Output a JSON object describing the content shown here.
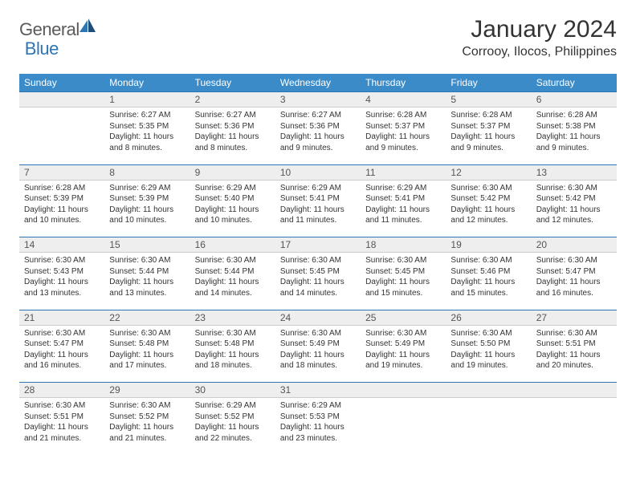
{
  "logo": {
    "general": "General",
    "blue": "Blue"
  },
  "title": "January 2024",
  "location": "Corrooy, Ilocos, Philippines",
  "colors": {
    "header_bg": "#3b8bc9",
    "header_text": "#ffffff",
    "daynum_bg": "#eeeeee",
    "border": "#2e75b6",
    "logo_gray": "#5a5a5a",
    "logo_blue": "#2e75b6"
  },
  "weekdays": [
    "Sunday",
    "Monday",
    "Tuesday",
    "Wednesday",
    "Thursday",
    "Friday",
    "Saturday"
  ],
  "weeks": [
    {
      "days": [
        {
          "num": "",
          "sunrise": "",
          "sunset": "",
          "daylight": ""
        },
        {
          "num": "1",
          "sunrise": "Sunrise: 6:27 AM",
          "sunset": "Sunset: 5:35 PM",
          "daylight": "Daylight: 11 hours and 8 minutes."
        },
        {
          "num": "2",
          "sunrise": "Sunrise: 6:27 AM",
          "sunset": "Sunset: 5:36 PM",
          "daylight": "Daylight: 11 hours and 8 minutes."
        },
        {
          "num": "3",
          "sunrise": "Sunrise: 6:27 AM",
          "sunset": "Sunset: 5:36 PM",
          "daylight": "Daylight: 11 hours and 9 minutes."
        },
        {
          "num": "4",
          "sunrise": "Sunrise: 6:28 AM",
          "sunset": "Sunset: 5:37 PM",
          "daylight": "Daylight: 11 hours and 9 minutes."
        },
        {
          "num": "5",
          "sunrise": "Sunrise: 6:28 AM",
          "sunset": "Sunset: 5:37 PM",
          "daylight": "Daylight: 11 hours and 9 minutes."
        },
        {
          "num": "6",
          "sunrise": "Sunrise: 6:28 AM",
          "sunset": "Sunset: 5:38 PM",
          "daylight": "Daylight: 11 hours and 9 minutes."
        }
      ]
    },
    {
      "days": [
        {
          "num": "7",
          "sunrise": "Sunrise: 6:28 AM",
          "sunset": "Sunset: 5:39 PM",
          "daylight": "Daylight: 11 hours and 10 minutes."
        },
        {
          "num": "8",
          "sunrise": "Sunrise: 6:29 AM",
          "sunset": "Sunset: 5:39 PM",
          "daylight": "Daylight: 11 hours and 10 minutes."
        },
        {
          "num": "9",
          "sunrise": "Sunrise: 6:29 AM",
          "sunset": "Sunset: 5:40 PM",
          "daylight": "Daylight: 11 hours and 10 minutes."
        },
        {
          "num": "10",
          "sunrise": "Sunrise: 6:29 AM",
          "sunset": "Sunset: 5:41 PM",
          "daylight": "Daylight: 11 hours and 11 minutes."
        },
        {
          "num": "11",
          "sunrise": "Sunrise: 6:29 AM",
          "sunset": "Sunset: 5:41 PM",
          "daylight": "Daylight: 11 hours and 11 minutes."
        },
        {
          "num": "12",
          "sunrise": "Sunrise: 6:30 AM",
          "sunset": "Sunset: 5:42 PM",
          "daylight": "Daylight: 11 hours and 12 minutes."
        },
        {
          "num": "13",
          "sunrise": "Sunrise: 6:30 AM",
          "sunset": "Sunset: 5:42 PM",
          "daylight": "Daylight: 11 hours and 12 minutes."
        }
      ]
    },
    {
      "days": [
        {
          "num": "14",
          "sunrise": "Sunrise: 6:30 AM",
          "sunset": "Sunset: 5:43 PM",
          "daylight": "Daylight: 11 hours and 13 minutes."
        },
        {
          "num": "15",
          "sunrise": "Sunrise: 6:30 AM",
          "sunset": "Sunset: 5:44 PM",
          "daylight": "Daylight: 11 hours and 13 minutes."
        },
        {
          "num": "16",
          "sunrise": "Sunrise: 6:30 AM",
          "sunset": "Sunset: 5:44 PM",
          "daylight": "Daylight: 11 hours and 14 minutes."
        },
        {
          "num": "17",
          "sunrise": "Sunrise: 6:30 AM",
          "sunset": "Sunset: 5:45 PM",
          "daylight": "Daylight: 11 hours and 14 minutes."
        },
        {
          "num": "18",
          "sunrise": "Sunrise: 6:30 AM",
          "sunset": "Sunset: 5:45 PM",
          "daylight": "Daylight: 11 hours and 15 minutes."
        },
        {
          "num": "19",
          "sunrise": "Sunrise: 6:30 AM",
          "sunset": "Sunset: 5:46 PM",
          "daylight": "Daylight: 11 hours and 15 minutes."
        },
        {
          "num": "20",
          "sunrise": "Sunrise: 6:30 AM",
          "sunset": "Sunset: 5:47 PM",
          "daylight": "Daylight: 11 hours and 16 minutes."
        }
      ]
    },
    {
      "days": [
        {
          "num": "21",
          "sunrise": "Sunrise: 6:30 AM",
          "sunset": "Sunset: 5:47 PM",
          "daylight": "Daylight: 11 hours and 16 minutes."
        },
        {
          "num": "22",
          "sunrise": "Sunrise: 6:30 AM",
          "sunset": "Sunset: 5:48 PM",
          "daylight": "Daylight: 11 hours and 17 minutes."
        },
        {
          "num": "23",
          "sunrise": "Sunrise: 6:30 AM",
          "sunset": "Sunset: 5:48 PM",
          "daylight": "Daylight: 11 hours and 18 minutes."
        },
        {
          "num": "24",
          "sunrise": "Sunrise: 6:30 AM",
          "sunset": "Sunset: 5:49 PM",
          "daylight": "Daylight: 11 hours and 18 minutes."
        },
        {
          "num": "25",
          "sunrise": "Sunrise: 6:30 AM",
          "sunset": "Sunset: 5:49 PM",
          "daylight": "Daylight: 11 hours and 19 minutes."
        },
        {
          "num": "26",
          "sunrise": "Sunrise: 6:30 AM",
          "sunset": "Sunset: 5:50 PM",
          "daylight": "Daylight: 11 hours and 19 minutes."
        },
        {
          "num": "27",
          "sunrise": "Sunrise: 6:30 AM",
          "sunset": "Sunset: 5:51 PM",
          "daylight": "Daylight: 11 hours and 20 minutes."
        }
      ]
    },
    {
      "days": [
        {
          "num": "28",
          "sunrise": "Sunrise: 6:30 AM",
          "sunset": "Sunset: 5:51 PM",
          "daylight": "Daylight: 11 hours and 21 minutes."
        },
        {
          "num": "29",
          "sunrise": "Sunrise: 6:30 AM",
          "sunset": "Sunset: 5:52 PM",
          "daylight": "Daylight: 11 hours and 21 minutes."
        },
        {
          "num": "30",
          "sunrise": "Sunrise: 6:29 AM",
          "sunset": "Sunset: 5:52 PM",
          "daylight": "Daylight: 11 hours and 22 minutes."
        },
        {
          "num": "31",
          "sunrise": "Sunrise: 6:29 AM",
          "sunset": "Sunset: 5:53 PM",
          "daylight": "Daylight: 11 hours and 23 minutes."
        },
        {
          "num": "",
          "sunrise": "",
          "sunset": "",
          "daylight": ""
        },
        {
          "num": "",
          "sunrise": "",
          "sunset": "",
          "daylight": ""
        },
        {
          "num": "",
          "sunrise": "",
          "sunset": "",
          "daylight": ""
        }
      ]
    }
  ]
}
